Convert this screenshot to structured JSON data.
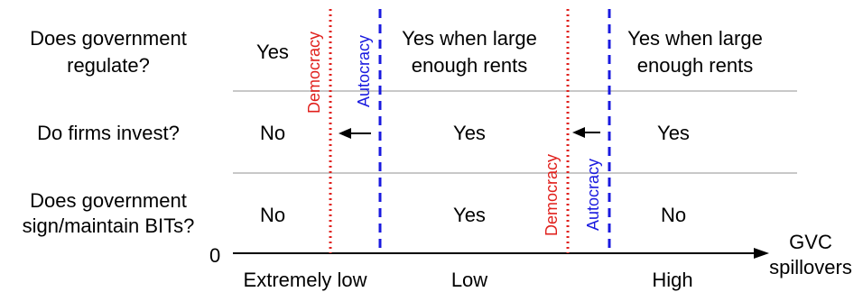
{
  "questions": {
    "q1": [
      "Does government",
      "regulate?"
    ],
    "q2": [
      "Do firms invest?"
    ],
    "q3": [
      "Does government",
      "sign/maintain BITs?"
    ]
  },
  "answers": {
    "extremely_low": {
      "regulate": [
        "Yes"
      ],
      "invest": [
        "No"
      ],
      "bits": [
        "No"
      ]
    },
    "low": {
      "regulate": [
        "Yes when large",
        "enough rents"
      ],
      "invest": [
        "Yes"
      ],
      "bits": [
        "Yes"
      ]
    },
    "high": {
      "regulate": [
        "Yes when large",
        "enough rents"
      ],
      "invest": [
        "Yes"
      ],
      "bits": [
        "No"
      ]
    }
  },
  "thresholds": {
    "democracy_label": "Democracy",
    "autocracy_label": "Autocracy",
    "democracy_color": "#e0201c",
    "autocracy_color": "#1a1adf"
  },
  "axis": {
    "origin_label": "0",
    "title": [
      "GVC",
      "spillovers"
    ],
    "categories": [
      "Extremely low",
      "Low",
      "High"
    ]
  },
  "colors": {
    "grid": "#c8c8c8",
    "text": "#000000"
  }
}
